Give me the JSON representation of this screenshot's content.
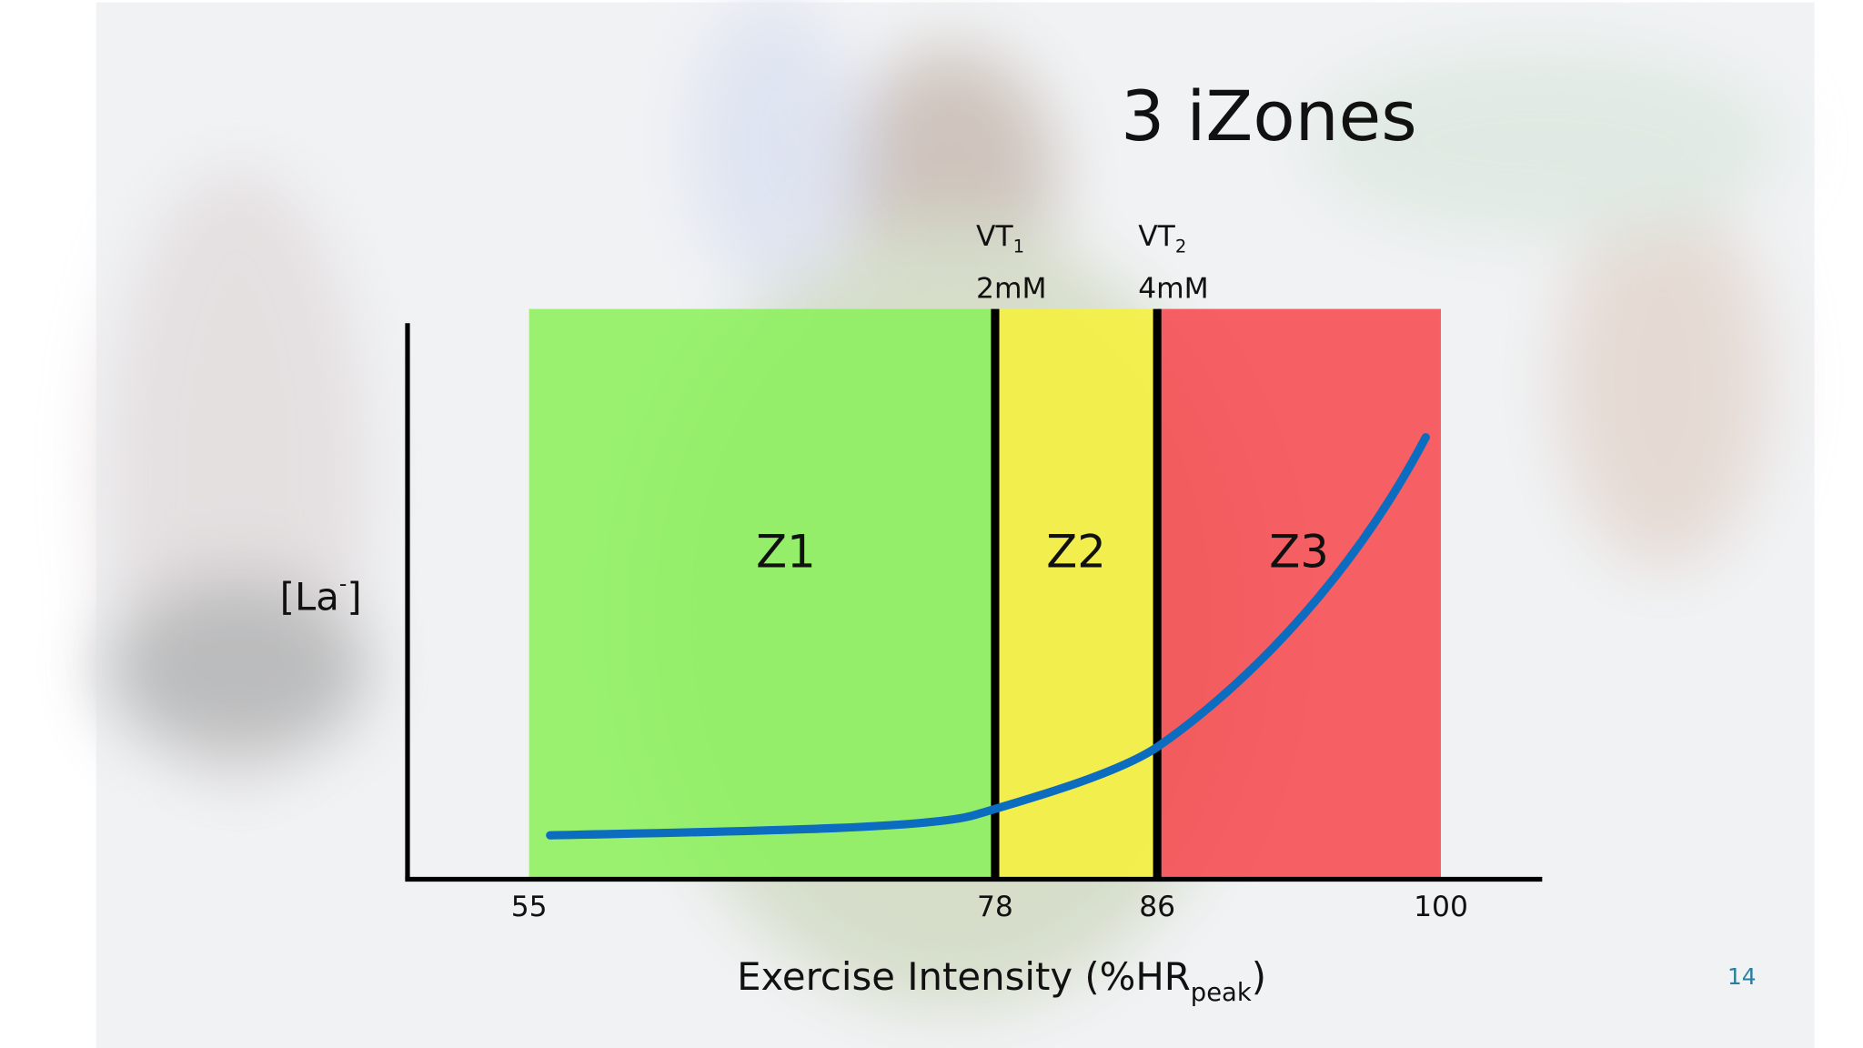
{
  "chart_data": {
    "type": "zones",
    "title": "3 iZones",
    "x_label": {
      "text": "Exercise Intensity (%HR",
      "sub": "peak",
      "end": ")"
    },
    "y_label": {
      "text": "[La",
      "sup": "-",
      "end": "]"
    },
    "xlim": [
      49,
      105
    ],
    "xticks": [
      55,
      78,
      86,
      100
    ],
    "zones": [
      {
        "label": "Z1",
        "from": 55,
        "to": 78,
        "color": "#8cf05c"
      },
      {
        "label": "Z2",
        "from": 78,
        "to": 86,
        "color": "#f6f03c"
      },
      {
        "label": "Z3",
        "from": 86,
        "to": 100,
        "color": "#f64a50"
      }
    ],
    "thresholds": [
      {
        "name": "VT",
        "sub": "1",
        "label": "2mM",
        "at": 78
      },
      {
        "name": "VT",
        "sub": "2",
        "label": "4mM",
        "at": 86
      }
    ],
    "page_number": "14"
  }
}
